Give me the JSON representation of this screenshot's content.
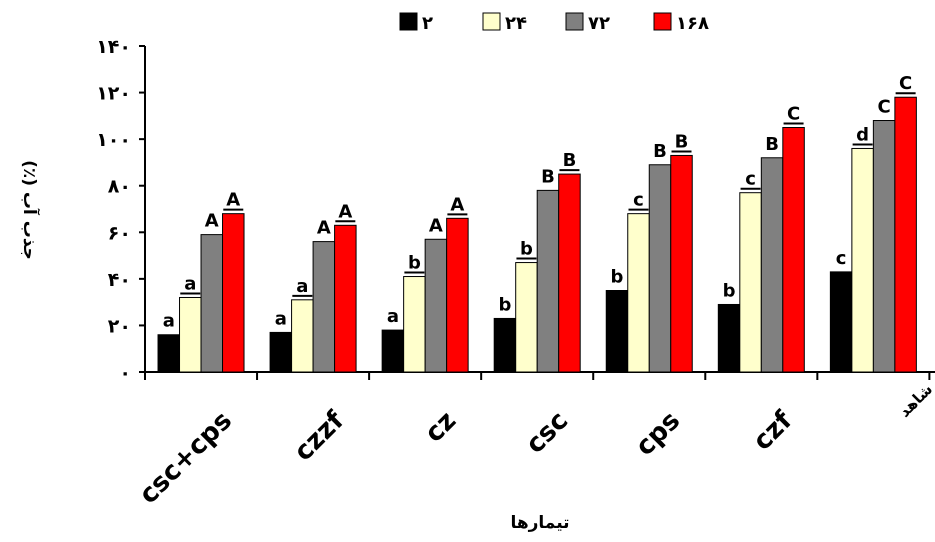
{
  "chart_data": {
    "type": "bar",
    "ylabel": "جذب آب (٪)",
    "xlabel": "تیمارها",
    "ylim": [
      0,
      140
    ],
    "yticks": [
      0,
      20,
      40,
      60,
      80,
      100,
      120,
      140
    ],
    "ytick_labels": [
      "٠",
      "٢٠",
      "۴٠",
      "۶٠",
      "٨٠",
      "١٠٠",
      "١٢٠",
      "١۴٠"
    ],
    "categories": [
      "csc+cps",
      "czzf",
      "cz",
      "csc",
      "cps",
      "czf",
      "نمونه شاهد"
    ],
    "legend_position": "top",
    "grid": false,
    "series": [
      {
        "name": "٢",
        "color": "#000000",
        "values": [
          16,
          17,
          18,
          23,
          35,
          29,
          43
        ],
        "letters": [
          "a",
          "a",
          "a",
          "b",
          "b",
          "b",
          "c"
        ],
        "underline": false
      },
      {
        "name": "٢۴",
        "color": "#ffffcc",
        "values": [
          32,
          31,
          41,
          47,
          68,
          77,
          96
        ],
        "letters": [
          "a",
          "a",
          "b",
          "b",
          "c",
          "c",
          "d"
        ],
        "underline": true
      },
      {
        "name": "٧٢",
        "color": "#808080",
        "values": [
          59,
          56,
          57,
          78,
          89,
          92,
          108
        ],
        "letters": [
          "A",
          "A",
          "A",
          "B",
          "B",
          "B",
          "C"
        ],
        "underline": false
      },
      {
        "name": "١۶٨",
        "color": "#ff0000",
        "values": [
          68,
          63,
          66,
          85,
          93,
          105,
          118
        ],
        "letters": [
          "A",
          "A",
          "A",
          "B",
          "B",
          "C",
          "C"
        ],
        "underline": true
      }
    ]
  }
}
